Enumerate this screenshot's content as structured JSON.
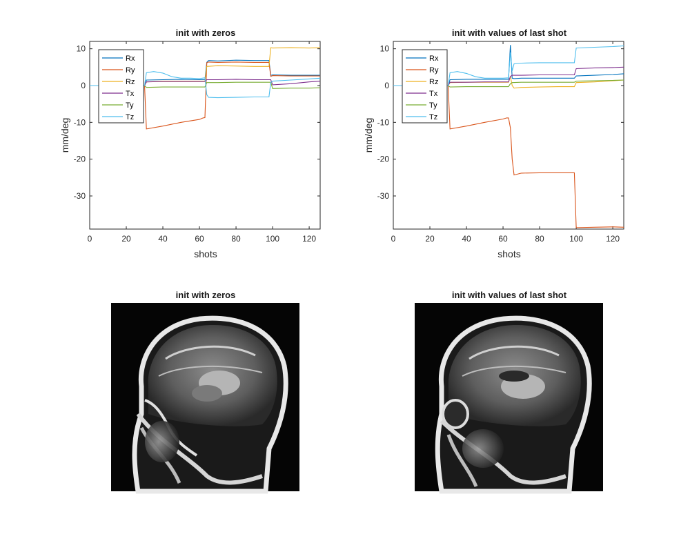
{
  "chart_data": [
    {
      "type": "line",
      "title": "init with zeros",
      "xlabel": "shots",
      "ylabel": "mm/deg",
      "xlim": [
        0,
        126
      ],
      "ylim": [
        -39,
        12
      ],
      "xticks": [
        0,
        20,
        40,
        60,
        80,
        100,
        120
      ],
      "yticks": [
        10,
        0,
        -10,
        -20,
        -30
      ],
      "grid": false,
      "legend_position": "top-left",
      "series": [
        {
          "name": "Rx",
          "color": "#0072BD",
          "x": [
            0,
            29,
            30,
            31,
            40,
            50,
            60,
            62,
            63,
            64,
            65,
            70,
            80,
            90,
            98,
            99,
            100,
            110,
            120,
            126
          ],
          "y": [
            0,
            0,
            0,
            1.5,
            1.6,
            1.7,
            1.6,
            1.6,
            1.6,
            6.3,
            6.8,
            6.7,
            6.9,
            6.8,
            6.8,
            2.8,
            2.9,
            2.8,
            2.8,
            2.8
          ]
        },
        {
          "name": "Ry",
          "color": "#D95319",
          "x": [
            0,
            29,
            30,
            31,
            40,
            50,
            60,
            62,
            63,
            64,
            65,
            70,
            80,
            90,
            98,
            99,
            100,
            110,
            120,
            126
          ],
          "y": [
            0,
            0,
            0,
            -11.8,
            -11,
            -10,
            -9.2,
            -8.8,
            -8.7,
            6.2,
            6.4,
            6.3,
            6.4,
            6.3,
            6.3,
            2.5,
            2.7,
            2.6,
            2.6,
            2.6
          ]
        },
        {
          "name": "Rz",
          "color": "#EDB120",
          "x": [
            0,
            29,
            30,
            31,
            40,
            50,
            60,
            63,
            64,
            70,
            80,
            90,
            98,
            99,
            100,
            110,
            120,
            126
          ],
          "y": [
            0,
            0,
            0,
            1.0,
            1.2,
            1.2,
            1.2,
            1.2,
            5.2,
            5.4,
            5.3,
            5.2,
            5.2,
            10.3,
            10.2,
            10.3,
            10.2,
            10.3
          ]
        },
        {
          "name": "Tx",
          "color": "#7E2F8E",
          "x": [
            0,
            29,
            30,
            31,
            40,
            50,
            60,
            63,
            64,
            70,
            80,
            90,
            98,
            99,
            100,
            110,
            120,
            126
          ],
          "y": [
            0,
            0,
            0,
            1.0,
            1.1,
            1.1,
            1.1,
            1.1,
            1.6,
            1.6,
            1.7,
            1.6,
            1.6,
            1.6,
            0.2,
            0.5,
            1.0,
            1.2
          ]
        },
        {
          "name": "Ty",
          "color": "#77AC30",
          "x": [
            0,
            29,
            30,
            31,
            40,
            50,
            60,
            63,
            64,
            70,
            80,
            90,
            98,
            99,
            100,
            110,
            120,
            126
          ],
          "y": [
            0,
            0,
            0,
            -0.5,
            -0.4,
            -0.4,
            -0.4,
            -0.4,
            0.8,
            0.8,
            0.9,
            0.9,
            0.9,
            0.9,
            -0.8,
            -0.7,
            -0.7,
            -0.6
          ]
        },
        {
          "name": "Tz",
          "color": "#4DBEEE",
          "x": [
            0,
            29,
            30,
            31,
            35,
            40,
            45,
            50,
            55,
            60,
            63,
            64,
            65,
            70,
            80,
            90,
            98,
            99,
            100,
            110,
            120,
            126
          ],
          "y": [
            0,
            0,
            0,
            3.5,
            3.8,
            3.4,
            2.4,
            2.0,
            2.0,
            1.9,
            2.1,
            -2.5,
            -3.2,
            -3.3,
            -3.2,
            -3.1,
            -3.1,
            0.8,
            1.2,
            1.5,
            1.8,
            2.0
          ]
        }
      ]
    },
    {
      "type": "line",
      "title": "init with values of last shot",
      "xlabel": "shots",
      "ylabel": "mm/deg",
      "xlim": [
        0,
        126
      ],
      "ylim": [
        -39,
        12
      ],
      "xticks": [
        0,
        20,
        40,
        60,
        80,
        100,
        120
      ],
      "yticks": [
        10,
        0,
        -10,
        -20,
        -30
      ],
      "grid": false,
      "legend_position": "top-left",
      "series": [
        {
          "name": "Rx",
          "color": "#0072BD",
          "x": [
            0,
            29,
            30,
            31,
            40,
            50,
            60,
            62,
            63,
            64,
            65,
            66,
            70,
            80,
            90,
            98,
            99,
            100,
            110,
            120,
            126
          ],
          "y": [
            0,
            0,
            0,
            1.6,
            1.7,
            1.7,
            1.7,
            1.7,
            1.7,
            11,
            2,
            1.9,
            2.0,
            2.0,
            2.0,
            2.0,
            2.0,
            2.6,
            2.8,
            3.0,
            3.2
          ]
        },
        {
          "name": "Ry",
          "color": "#D95319",
          "x": [
            0,
            29,
            30,
            31,
            40,
            50,
            60,
            62,
            63,
            64,
            65,
            66,
            70,
            80,
            90,
            98,
            99,
            100,
            110,
            120,
            126
          ],
          "y": [
            0,
            0,
            0,
            -11.8,
            -11,
            -10,
            -9.1,
            -8.8,
            -8.8,
            -11.5,
            -20,
            -24.3,
            -23.8,
            -23.7,
            -23.7,
            -23.7,
            -23.7,
            -38.6,
            -38.5,
            -38.4,
            -38.5
          ]
        },
        {
          "name": "Rz",
          "color": "#EDB120",
          "x": [
            0,
            29,
            30,
            31,
            40,
            50,
            60,
            63,
            64,
            65,
            66,
            70,
            80,
            90,
            98,
            99,
            100,
            110,
            120,
            126
          ],
          "y": [
            0,
            0,
            0,
            0.8,
            0.9,
            0.9,
            0.9,
            0.9,
            2.5,
            0,
            -0.7,
            -0.5,
            -0.4,
            -0.3,
            -0.3,
            -0.3,
            0.8,
            1.0,
            1.3,
            1.5
          ]
        },
        {
          "name": "Tx",
          "color": "#7E2F8E",
          "x": [
            0,
            29,
            30,
            31,
            40,
            50,
            60,
            63,
            64,
            65,
            70,
            80,
            90,
            98,
            99,
            100,
            110,
            120,
            126
          ],
          "y": [
            0,
            0,
            0,
            0.9,
            0.9,
            1.0,
            1.0,
            1.0,
            2.5,
            2.8,
            2.8,
            2.9,
            2.9,
            2.9,
            2.9,
            4.6,
            4.8,
            4.9,
            5.0
          ]
        },
        {
          "name": "Ty",
          "color": "#77AC30",
          "x": [
            0,
            29,
            30,
            31,
            40,
            50,
            60,
            63,
            64,
            65,
            70,
            80,
            90,
            98,
            99,
            100,
            110,
            120,
            126
          ],
          "y": [
            0,
            0,
            0,
            -0.4,
            -0.3,
            -0.3,
            -0.3,
            -0.3,
            0.5,
            0.8,
            0.9,
            0.9,
            0.9,
            0.9,
            0.9,
            1.2,
            1.3,
            1.4,
            1.5
          ]
        },
        {
          "name": "Tz",
          "color": "#4DBEEE",
          "x": [
            0,
            29,
            30,
            31,
            35,
            40,
            45,
            50,
            55,
            60,
            63,
            64,
            65,
            66,
            70,
            80,
            90,
            98,
            99,
            100,
            110,
            120,
            126
          ],
          "y": [
            0,
            0,
            0,
            3.5,
            3.8,
            3.3,
            2.4,
            2.0,
            2.0,
            2.0,
            2.1,
            9,
            4,
            5.9,
            6.1,
            6.2,
            6.2,
            6.2,
            6.2,
            10.2,
            10.4,
            10.6,
            10.8
          ]
        }
      ]
    }
  ],
  "images": [
    {
      "title": "init with zeros",
      "alt": "sagittal MRI brain slice"
    },
    {
      "title": "init with values of last shot",
      "alt": "sagittal MRI brain slice"
    }
  ]
}
